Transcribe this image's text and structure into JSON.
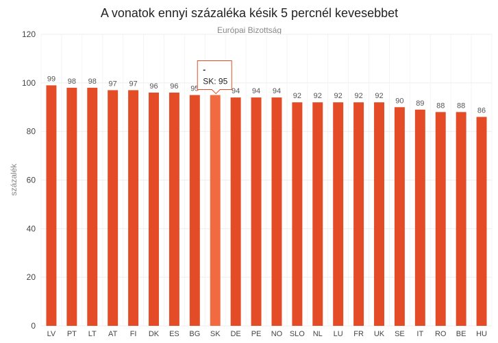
{
  "chart_data": {
    "type": "bar",
    "title": "A vonatok ennyi százaléka késik 5 percnél kevesebbet",
    "subtitle": "Európai Bizottság",
    "xlabel": "",
    "ylabel": "százalék",
    "ylim": [
      0,
      120
    ],
    "yticks": [
      0,
      20,
      40,
      60,
      80,
      100,
      120
    ],
    "grid": true,
    "categories": [
      "LV",
      "PT",
      "LT",
      "AT",
      "FI",
      "DK",
      "ES",
      "BG",
      "SK",
      "DE",
      "PE",
      "NO",
      "SLO",
      "NL",
      "LU",
      "FR",
      "UK",
      "SE",
      "IT",
      "RO",
      "BE",
      "HU"
    ],
    "values": [
      99,
      98,
      98,
      97,
      97,
      96,
      96,
      95,
      95,
      94,
      94,
      94,
      92,
      92,
      92,
      92,
      92,
      90,
      89,
      88,
      88,
      86
    ],
    "data_labels": [
      "99",
      "98",
      "98",
      "97",
      "97",
      "96",
      "96",
      "95",
      "",
      "94",
      "94",
      "94",
      "92",
      "92",
      "92",
      "92",
      "92",
      "90",
      "89",
      "88",
      "88",
      "86"
    ],
    "colors": {
      "bar": "#e34c26",
      "bar_highlight": "#f26a3f"
    },
    "highlight_index": 8,
    "tooltip": {
      "title": "-",
      "text": "SK: 95"
    }
  }
}
